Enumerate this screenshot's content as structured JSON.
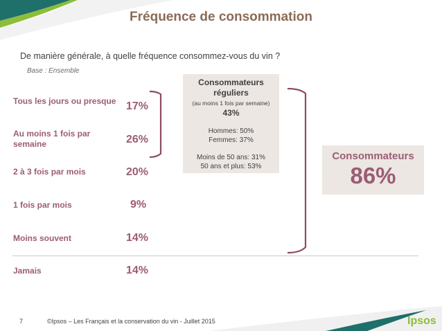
{
  "slide": {
    "title": "Fréquence de consommation",
    "question": "De manière générale, à quelle fréquence consommez-vous du vin ?",
    "base": "Base : Ensemble",
    "rows": [
      {
        "label": "Tous les jours ou presque",
        "value": "17%"
      },
      {
        "label": "Au moins 1 fois par semaine",
        "value": "26%"
      },
      {
        "label": "2 à 3 fois par mois",
        "value": "20%"
      },
      {
        "label": "1 fois par mois",
        "value": "9%"
      },
      {
        "label": "Moins souvent",
        "value": "14%"
      },
      {
        "label": "Jamais",
        "value": "14%"
      }
    ],
    "regular_box": {
      "title": "Consommateurs réguliers",
      "subtitle": "(au moins 1 fois par semaine)",
      "value": "43%",
      "hommes": "Hommes: 50%",
      "femmes": "Femmes: 37%",
      "under50": "Moins de 50 ans: 31%",
      "over50": "50 ans et plus: 53%"
    },
    "consumers_box": {
      "label": "Consommateurs",
      "value": "86%"
    }
  },
  "footer": {
    "page_number": "7",
    "text": "©Ipsos – Les Français et la conservation du vin - Juillet 2015",
    "logo": "Ipsos"
  },
  "colors": {
    "accent": "#9c5c75",
    "title": "#8b6b55",
    "box_bg": "#ece7e3",
    "teal": "#1f6f6b",
    "logo_green": "#8dbd3a"
  }
}
